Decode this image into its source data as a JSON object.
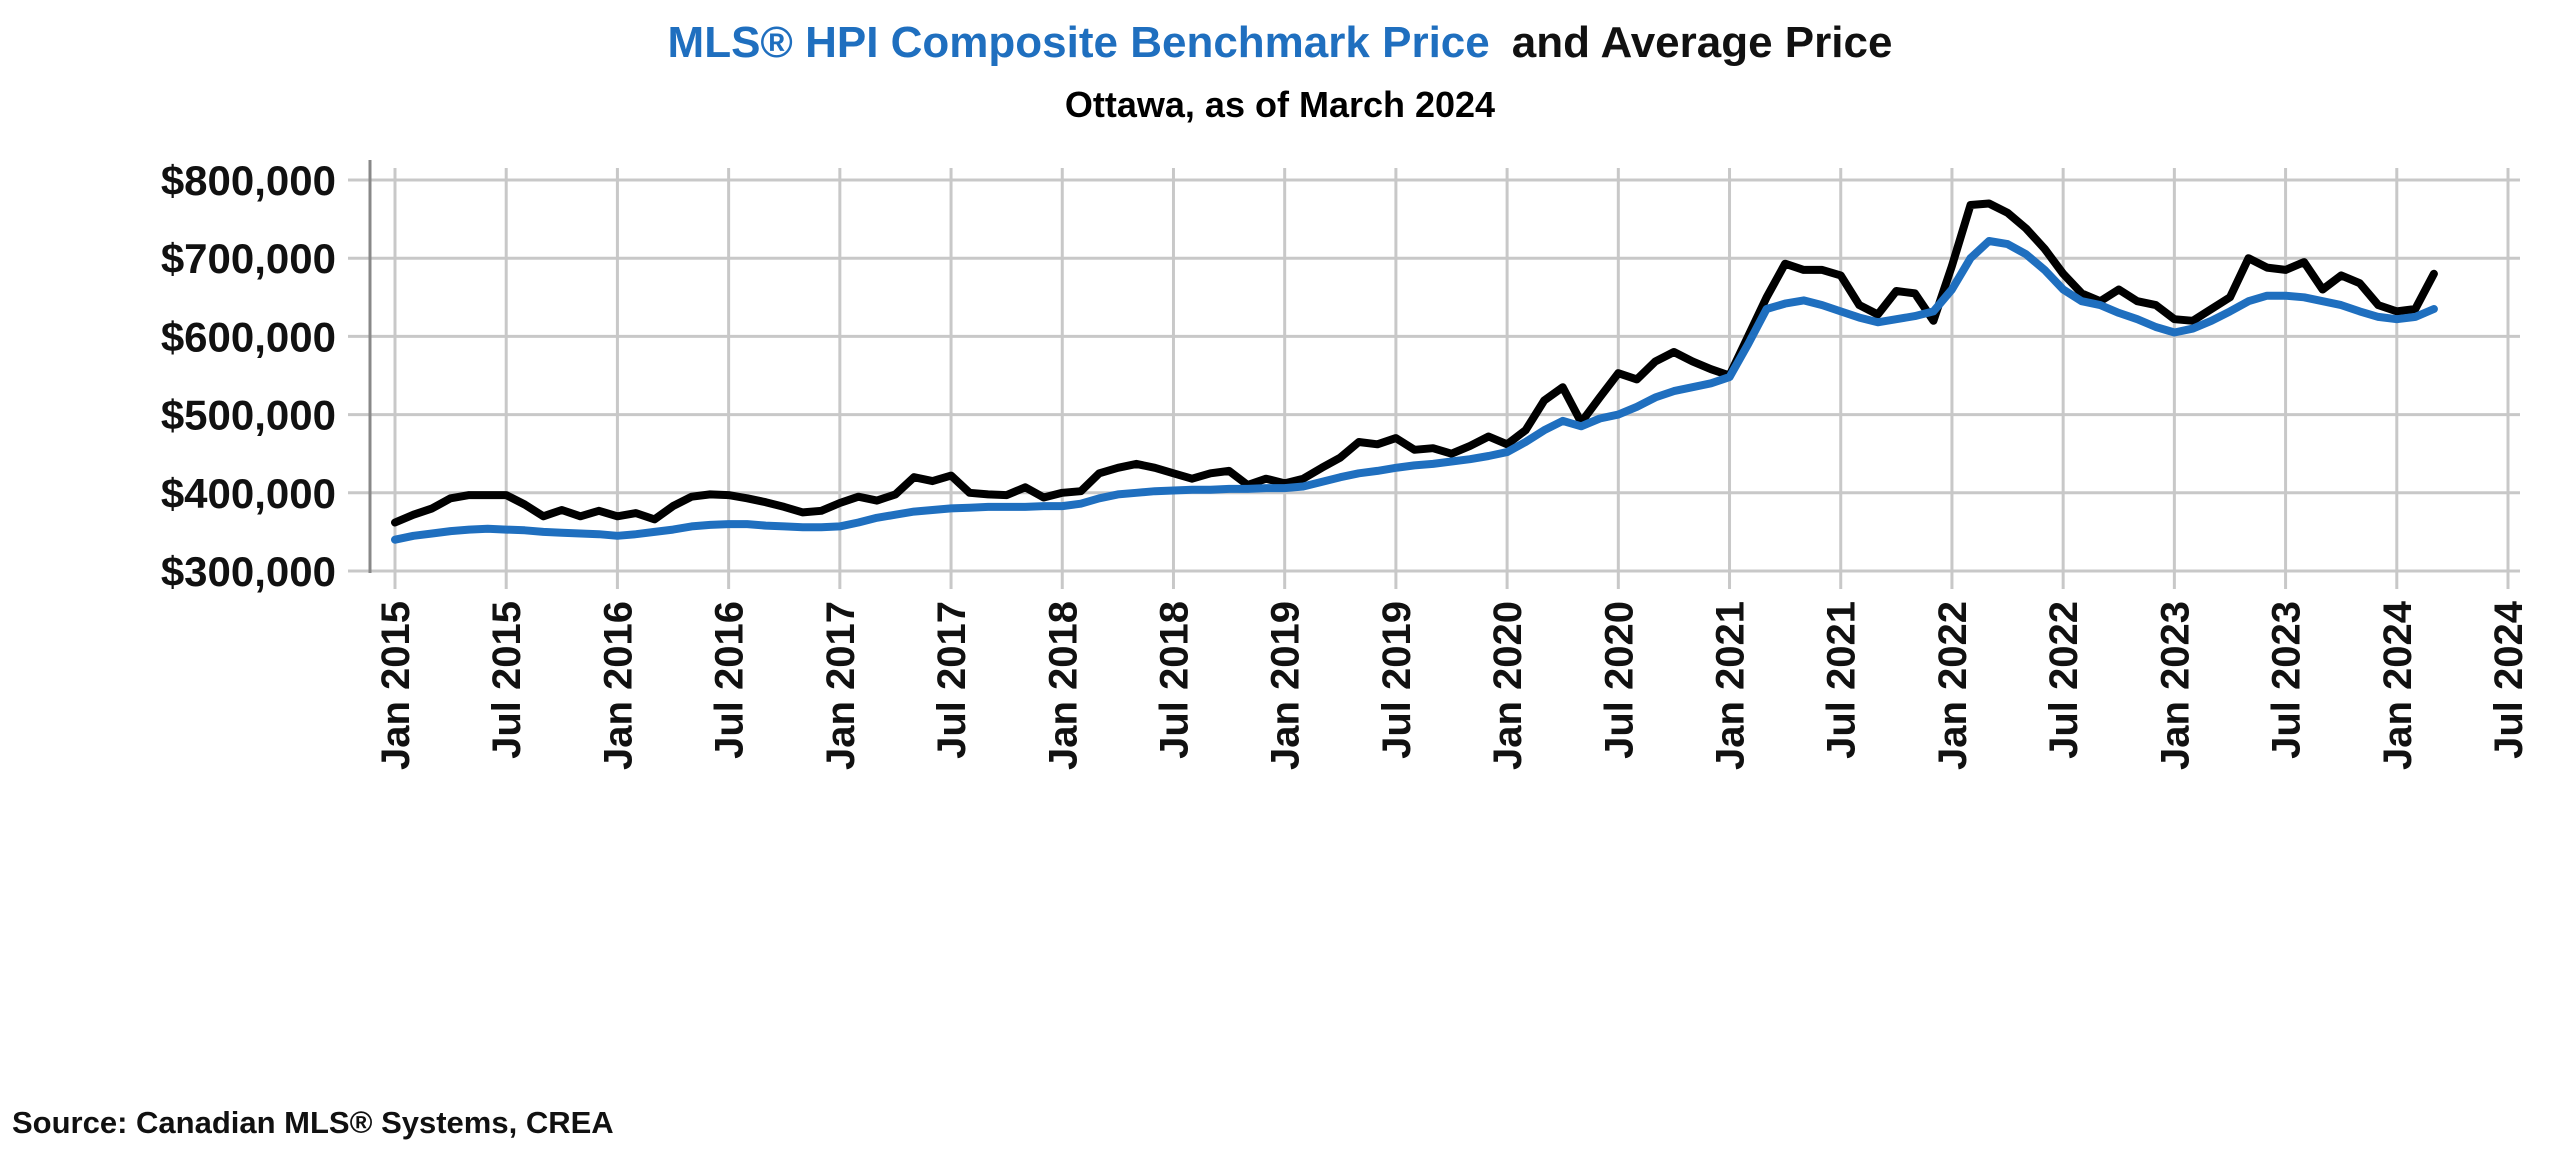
{
  "chart_data": {
    "type": "line",
    "title_part_blue": "MLS® HPI Composite Benchmark Price",
    "title_part_black": "and Average Price",
    "subtitle": "Ottawa, as of March 2024",
    "source": "Source: Canadian MLS® Systems, CREA",
    "xlabel": "",
    "ylabel": "",
    "ylim": [
      300000,
      800000
    ],
    "yticks": [
      300000,
      400000,
      500000,
      600000,
      700000,
      800000
    ],
    "ytick_labels": [
      "$300,000",
      "$400,000",
      "$500,000",
      "$600,000",
      "$700,000",
      "$800,000"
    ],
    "xtick_labels": [
      "Jan 2015",
      "Jul 2015",
      "Jan 2016",
      "Jul 2016",
      "Jan 2017",
      "Jul 2017",
      "Jan 2018",
      "Jul 2018",
      "Jan 2019",
      "Jul 2019",
      "Jan 2020",
      "Jul 2020",
      "Jan 2021",
      "Jul 2021",
      "Jan 2022",
      "Jul 2022",
      "Jan 2023",
      "Jul 2023",
      "Jan 2024",
      "Jul 2024"
    ],
    "x_start": "Jan 2015",
    "x_step": "monthly",
    "grid": true,
    "series": [
      {
        "name": "Average Price",
        "color": "#000000",
        "values": [
          362000,
          372000,
          380000,
          393000,
          397000,
          397000,
          397000,
          385000,
          370000,
          378000,
          370000,
          377000,
          370000,
          374000,
          366000,
          383000,
          395000,
          398000,
          397000,
          393000,
          388000,
          382000,
          375000,
          377000,
          387000,
          395000,
          390000,
          398000,
          420000,
          415000,
          422000,
          400000,
          398000,
          397000,
          407000,
          394000,
          400000,
          402000,
          425000,
          432000,
          437000,
          432000,
          425000,
          418000,
          425000,
          428000,
          410000,
          418000,
          412000,
          418000,
          432000,
          445000,
          465000,
          462000,
          470000,
          455000,
          457000,
          450000,
          460000,
          472000,
          462000,
          480000,
          518000,
          535000,
          490000,
          522000,
          553000,
          545000,
          568000,
          580000,
          568000,
          558000,
          550000,
          600000,
          650000,
          693000,
          685000,
          685000,
          678000,
          640000,
          628000,
          658000,
          655000,
          620000,
          690000,
          768000,
          770000,
          758000,
          738000,
          712000,
          680000,
          655000,
          645000,
          660000,
          645000,
          640000,
          622000,
          620000,
          635000,
          650000,
          700000,
          688000,
          685000,
          695000,
          660000,
          678000,
          668000,
          640000,
          632000,
          635000,
          680000
        ]
      },
      {
        "name": "MLS® HPI Composite Benchmark Price",
        "color": "#1f6fbf",
        "values": [
          340000,
          345000,
          348000,
          351000,
          353000,
          354000,
          353000,
          352000,
          350000,
          349000,
          348000,
          347000,
          345000,
          347000,
          350000,
          353000,
          357000,
          359000,
          360000,
          360000,
          358000,
          357000,
          356000,
          356000,
          357000,
          362000,
          368000,
          372000,
          376000,
          378000,
          380000,
          381000,
          382000,
          382000,
          382000,
          383000,
          383000,
          386000,
          393000,
          398000,
          400000,
          402000,
          403000,
          404000,
          404000,
          405000,
          405000,
          406000,
          406000,
          408000,
          414000,
          420000,
          425000,
          428000,
          432000,
          435000,
          437000,
          440000,
          443000,
          447000,
          452000,
          465000,
          480000,
          492000,
          485000,
          495000,
          500000,
          510000,
          522000,
          530000,
          535000,
          540000,
          548000,
          590000,
          635000,
          642000,
          646000,
          640000,
          632000,
          624000,
          618000,
          622000,
          626000,
          632000,
          660000,
          700000,
          722000,
          718000,
          705000,
          685000,
          660000,
          645000,
          640000,
          630000,
          622000,
          612000,
          605000,
          610000,
          620000,
          632000,
          645000,
          652000,
          652000,
          650000,
          645000,
          640000,
          632000,
          625000,
          622000,
          625000,
          635000
        ]
      }
    ]
  }
}
